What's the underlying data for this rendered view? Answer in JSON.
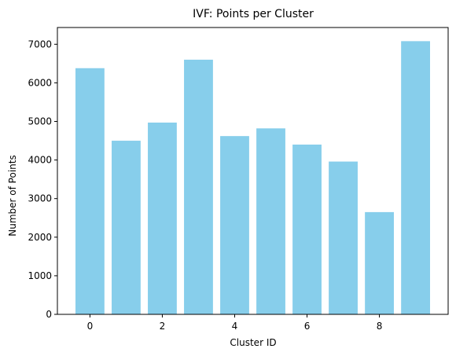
{
  "chart_data": {
    "type": "bar",
    "title": "IVF: Points per Cluster",
    "xlabel": "Cluster ID",
    "ylabel": "Number of Points",
    "categories": [
      0,
      1,
      2,
      3,
      4,
      5,
      6,
      7,
      8,
      9
    ],
    "values": [
      6380,
      4500,
      4970,
      6600,
      4620,
      4820,
      4400,
      3960,
      2650,
      7080
    ],
    "xticks": [
      0,
      2,
      4,
      6,
      8
    ],
    "yticks": [
      0,
      1000,
      2000,
      3000,
      4000,
      5000,
      6000,
      7000
    ],
    "xlim": [
      -0.9,
      9.9
    ],
    "ylim": [
      0,
      7434
    ],
    "bar_color": "#87ceeb",
    "grid": false,
    "legend": false
  }
}
